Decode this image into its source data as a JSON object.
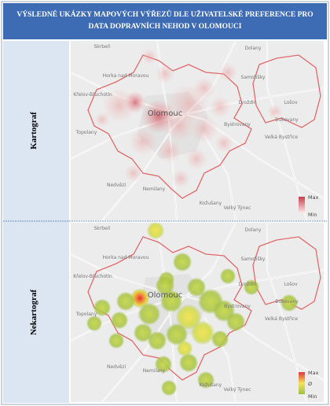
{
  "header": {
    "title": "VÝSLEDNÉ UKÁZKY MAPOVÝCH VÝŘEZŮ DLE UŽIVATELSKÉ PREFERENCE PRO DATA DOPRAVNÍCH NEHOD V OLOMOUCI"
  },
  "panels": [
    {
      "label": "Kartograf",
      "legend": [
        "Max",
        "Min"
      ],
      "places": [
        "Skrbeň",
        "Horka nad Moravou",
        "Dolany",
        "Samotišky",
        "Křelov-Břuchotín",
        "Droždín",
        "Lošov",
        "Olomouc",
        "Bukovany",
        "Bystrovany",
        "Velká Bystřice",
        "Topolany",
        "Nedvězí",
        "Nemilany",
        "Kožušany",
        "Velký Týnec"
      ]
    },
    {
      "label": "Nekartograf",
      "legend": [
        "Max",
        "Ø",
        "Min"
      ],
      "places": [
        "Skrbeň",
        "Horka nad Moravou",
        "Dolany",
        "Samotišky",
        "Křelov-Břuchotín",
        "Droždín",
        "Lošov",
        "Olomouc",
        "Bukovany",
        "Bystrovany",
        "Velká Bystřice",
        "Topolany",
        "Nedvězí",
        "Nemilany",
        "Kožušany",
        "Velký Týnec"
      ]
    }
  ]
}
